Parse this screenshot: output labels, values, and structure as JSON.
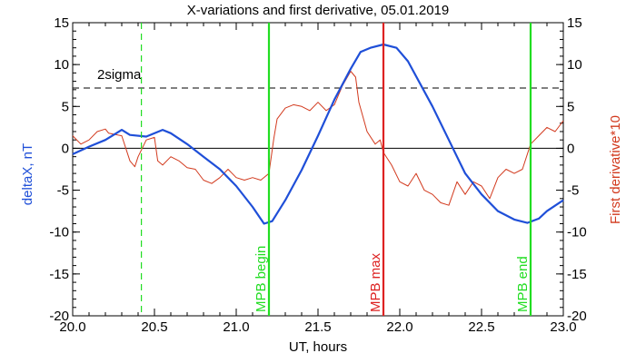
{
  "colors": {
    "deltaX": "#1f4fd8",
    "derivative": "#d23a1e",
    "mpb_marker": "#22dd22",
    "mpb_max": "#dd2222",
    "axis": "#000000"
  },
  "chart_data": {
    "type": "line",
    "title": "X-variations and first derivative, 05.01.2019",
    "xlabel": "UT, hours",
    "ylabel_left": "deltaX, nT",
    "ylabel_right": "First derivative*10",
    "xlim": [
      20.0,
      23.0
    ],
    "ylim": [
      -20,
      15
    ],
    "x_ticks": [
      "20.0",
      "20.5",
      "21.0",
      "21.5",
      "22.0",
      "22.5",
      "23.0"
    ],
    "y_ticks": [
      "15",
      "10",
      "5",
      "0",
      "-5",
      "-10",
      "-15",
      "-20"
    ],
    "reference_lines": {
      "zero": 0,
      "two_sigma": {
        "value": 7.2,
        "label": "2sigma"
      }
    },
    "vertical_markers": [
      {
        "x": 20.42,
        "style": "dashed",
        "label": ""
      },
      {
        "x": 21.2,
        "style": "solid",
        "label": "MPB begin"
      },
      {
        "x": 21.9,
        "style": "solid",
        "label": "MPB max"
      },
      {
        "x": 22.8,
        "style": "solid",
        "label": "MPB end"
      }
    ],
    "series": [
      {
        "name": "deltaX, nT",
        "x": [
          20.0,
          20.1,
          20.2,
          20.3,
          20.35,
          20.45,
          20.55,
          20.6,
          20.7,
          20.8,
          20.9,
          21.0,
          21.1,
          21.17,
          21.22,
          21.3,
          21.4,
          21.5,
          21.6,
          21.7,
          21.76,
          21.82,
          21.9,
          21.98,
          22.05,
          22.2,
          22.3,
          22.4,
          22.5,
          22.6,
          22.7,
          22.78,
          22.85,
          22.9,
          23.0
        ],
        "values": [
          -0.7,
          0.2,
          1.0,
          2.2,
          1.6,
          1.4,
          2.2,
          1.8,
          0.5,
          -1.0,
          -2.5,
          -4.5,
          -7.0,
          -9.0,
          -8.7,
          -6.2,
          -2.6,
          1.5,
          5.8,
          9.5,
          11.5,
          12.0,
          12.4,
          12.0,
          10.4,
          5.0,
          1.0,
          -3.0,
          -5.5,
          -7.5,
          -8.5,
          -8.9,
          -8.4,
          -7.5,
          -6.2
        ]
      },
      {
        "name": "First derivative*10",
        "x": [
          20.0,
          20.05,
          20.1,
          20.15,
          20.2,
          20.22,
          20.3,
          20.35,
          20.38,
          20.4,
          20.45,
          20.5,
          20.52,
          20.55,
          20.6,
          20.65,
          20.7,
          20.75,
          20.8,
          20.85,
          20.9,
          20.95,
          21.0,
          21.05,
          21.1,
          21.15,
          21.2,
          21.23,
          21.25,
          21.3,
          21.35,
          21.4,
          21.45,
          21.5,
          21.55,
          21.6,
          21.65,
          21.7,
          21.73,
          21.75,
          21.8,
          21.85,
          21.88,
          21.9,
          21.95,
          22.0,
          22.05,
          22.1,
          22.15,
          22.2,
          22.25,
          22.3,
          22.35,
          22.4,
          22.45,
          22.5,
          22.55,
          22.6,
          22.65,
          22.7,
          22.75,
          22.8,
          22.85,
          22.9,
          22.95,
          23.0
        ],
        "values": [
          1.5,
          0.5,
          1.0,
          2.0,
          2.3,
          1.8,
          1.5,
          -1.5,
          -2.2,
          -1.0,
          1.0,
          1.3,
          -1.5,
          -2.0,
          -1.0,
          -1.5,
          -2.3,
          -2.5,
          -3.8,
          -4.2,
          -3.5,
          -2.5,
          -3.5,
          -3.8,
          -3.5,
          -3.8,
          -3.0,
          1.2,
          3.5,
          4.8,
          5.2,
          5.0,
          4.5,
          5.5,
          4.5,
          5.2,
          7.5,
          9.2,
          8.5,
          5.5,
          2.0,
          0.5,
          1.0,
          -0.5,
          -2.0,
          -4.0,
          -4.5,
          -3.0,
          -5.0,
          -5.5,
          -6.5,
          -6.8,
          -4.0,
          -5.5,
          -4.0,
          -4.5,
          -6.0,
          -3.5,
          -2.5,
          -3.0,
          -2.5,
          0.5,
          1.5,
          2.5,
          2.0,
          3.3
        ]
      }
    ]
  }
}
